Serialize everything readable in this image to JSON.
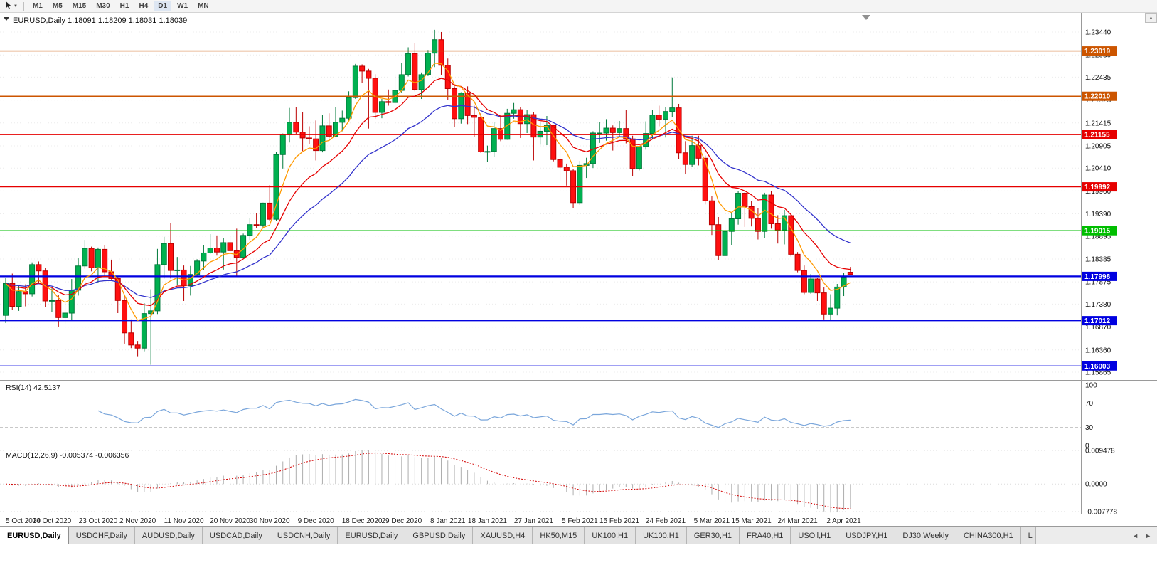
{
  "toolbar": {
    "timeframes": [
      "M1",
      "M5",
      "M15",
      "M30",
      "H1",
      "H4",
      "D1",
      "W1",
      "MN"
    ],
    "active_timeframe": "D1"
  },
  "chart": {
    "symbol": "EURUSD",
    "period": "Daily",
    "title_text": "EURUSD,Daily 1.18091 1.18209 1.18031 1.18039",
    "open": "1.18091",
    "high": "1.18209",
    "low": "1.18031",
    "close": "1.18039"
  },
  "misc": {
    "scroll_up_glyph": "▲",
    "dropdown_caret_glyph": "▼",
    "tab_scroll_left_glyph": "◄",
    "tab_scroll_right_glyph": "►"
  },
  "tabs": {
    "items": [
      "EURUSD,Daily",
      "USDCHF,Daily",
      "AUDUSD,Daily",
      "USDCAD,Daily",
      "USDCNH,Daily",
      "EURUSD,Daily",
      "GBPUSD,Daily",
      "XAUUSD,H4",
      "HK50,M15",
      "UK100,H1",
      "UK100,H1",
      "GER30,H1",
      "FRA40,H1",
      "USOil,H1",
      "USDJPY,H1",
      "DJ30,Weekly",
      "CHINA300,H1"
    ],
    "active_index": 0,
    "partial_label": "L"
  },
  "chart_data": {
    "type": "candlestick",
    "symbol": "EURUSD",
    "timeframe": "Daily",
    "colors": {
      "up": "#00b050",
      "up_border": "#00793a",
      "down": "#ff1010",
      "down_border": "#bb0000",
      "axis_text": "#111111",
      "separator": "#9a9a9a",
      "grid": "#ececec"
    },
    "y_axis_ticks": [
      "1.23440",
      "1.22930",
      "1.22435",
      "1.21925",
      "1.21415",
      "1.20905",
      "1.20410",
      "1.19900",
      "1.19390",
      "1.18895",
      "1.18385",
      "1.17875",
      "1.17380",
      "1.16870",
      "1.16360",
      "1.15865"
    ],
    "hlines": [
      {
        "price": 1.23019,
        "label": "1.23019",
        "color": "#cc5500",
        "width": 1.4
      },
      {
        "price": 1.2201,
        "label": "1.22010",
        "color": "#cc5500",
        "width": 1.4
      },
      {
        "price": 1.21155,
        "label": "1.21155",
        "color": "#e60000",
        "width": 1.4
      },
      {
        "price": 1.19992,
        "label": "1.19992",
        "color": "#e60000",
        "width": 1.4
      },
      {
        "price": 1.19015,
        "label": "1.19015",
        "color": "#00be00",
        "width": 1.4
      },
      {
        "price": 1.17998,
        "label": "1.17998",
        "color": "#0000e0",
        "width": 2.2
      },
      {
        "price": 1.17012,
        "label": "1.17012",
        "color": "#0000e0",
        "width": 1.4
      },
      {
        "price": 1.16003,
        "label": "1.16003",
        "color": "#0000e0",
        "width": 1.4
      }
    ],
    "moving_averages": [
      {
        "name": "slow",
        "type": "ema",
        "period": 25,
        "color": "#3333cc"
      },
      {
        "name": "medium",
        "type": "ema",
        "period": 13,
        "color": "#e60000"
      },
      {
        "name": "fast",
        "type": "ema",
        "period": 6,
        "color": "#ff9900"
      }
    ],
    "rsi": {
      "label": "RSI(14) 42.5137",
      "period": 14,
      "current_value": 42.5137,
      "levels": [
        100,
        70,
        30,
        0
      ],
      "dashed_levels": [
        70,
        30
      ],
      "color": "#7aa6db"
    },
    "macd": {
      "label": "MACD(12,26,9) -0.005374 -0.006356",
      "fast": 12,
      "slow": 26,
      "signal_period": 9,
      "macd_value": -0.005374,
      "signal_value": -0.006356,
      "scale_max": 0.009478,
      "scale_min": -0.007778,
      "levels": [
        "0.009478",
        "0.0000",
        "-0.007778"
      ],
      "histogram_color": "#adadad",
      "signal_color": "#d20000"
    },
    "x_labels": [
      {
        "label": "5 Oct 2020",
        "index": 0
      },
      {
        "label": "14 Oct 2020",
        "index": 7
      },
      {
        "label": "23 Oct 2020",
        "index": 14
      },
      {
        "label": "2 Nov 2020",
        "index": 20
      },
      {
        "label": "11 Nov 2020",
        "index": 27
      },
      {
        "label": "20 Nov 2020",
        "index": 34
      },
      {
        "label": "30 Nov 2020",
        "index": 40
      },
      {
        "label": "9 Dec 2020",
        "index": 47
      },
      {
        "label": "18 Dec 2020",
        "index": 54
      },
      {
        "label": "29 Dec 2020",
        "index": 60
      },
      {
        "label": "8 Jan 2021",
        "index": 67
      },
      {
        "label": "18 Jan 2021",
        "index": 73
      },
      {
        "label": "27 Jan 2021",
        "index": 80
      },
      {
        "label": "5 Feb 2021",
        "index": 87
      },
      {
        "label": "15 Feb 2021",
        "index": 93
      },
      {
        "label": "24 Feb 2021",
        "index": 100
      },
      {
        "label": "5 Mar 2021",
        "index": 107
      },
      {
        "label": "15 Mar 2021",
        "index": 113
      },
      {
        "label": "24 Mar 2021",
        "index": 120
      },
      {
        "label": "2 Apr 2021",
        "index": 127
      }
    ],
    "candles": [
      [
        1.1713,
        1.1797,
        1.1696,
        1.1784
      ],
      [
        1.1784,
        1.1806,
        1.1725,
        1.1733
      ],
      [
        1.1733,
        1.1781,
        1.1723,
        1.1766
      ],
      [
        1.1766,
        1.1782,
        1.1733,
        1.1761
      ],
      [
        1.1761,
        1.1831,
        1.1755,
        1.1826
      ],
      [
        1.1826,
        1.1833,
        1.1786,
        1.1812
      ],
      [
        1.1812,
        1.1818,
        1.1731,
        1.1745
      ],
      [
        1.1745,
        1.1773,
        1.1721,
        1.1746
      ],
      [
        1.1746,
        1.1758,
        1.1688,
        1.1708
      ],
      [
        1.1708,
        1.1747,
        1.1694,
        1.1718
      ],
      [
        1.1718,
        1.1794,
        1.1702,
        1.1769
      ],
      [
        1.1769,
        1.184,
        1.1757,
        1.1823
      ],
      [
        1.1823,
        1.1881,
        1.1817,
        1.1862
      ],
      [
        1.1862,
        1.1866,
        1.1811,
        1.1819
      ],
      [
        1.1819,
        1.1864,
        1.1786,
        1.186
      ],
      [
        1.186,
        1.187,
        1.18,
        1.181
      ],
      [
        1.181,
        1.1837,
        1.1793,
        1.1795
      ],
      [
        1.1795,
        1.18,
        1.1718,
        1.1746
      ],
      [
        1.1746,
        1.1759,
        1.165,
        1.1674
      ],
      [
        1.1674,
        1.1704,
        1.164,
        1.1647
      ],
      [
        1.1647,
        1.1656,
        1.1622,
        1.164
      ],
      [
        1.164,
        1.174,
        1.1633,
        1.1717
      ],
      [
        1.1717,
        1.1771,
        1.1603,
        1.1723
      ],
      [
        1.1723,
        1.1861,
        1.1716,
        1.1826
      ],
      [
        1.1826,
        1.1888,
        1.1795,
        1.1873
      ],
      [
        1.1873,
        1.1918,
        1.1795,
        1.1813
      ],
      [
        1.1813,
        1.1843,
        1.178,
        1.1814
      ],
      [
        1.1814,
        1.1824,
        1.1745,
        1.1779
      ],
      [
        1.1779,
        1.1823,
        1.1757,
        1.1804
      ],
      [
        1.1804,
        1.1838,
        1.1799,
        1.1834
      ],
      [
        1.1834,
        1.1869,
        1.1814,
        1.1852
      ],
      [
        1.1852,
        1.1894,
        1.185,
        1.1863
      ],
      [
        1.1863,
        1.1891,
        1.1846,
        1.1854
      ],
      [
        1.1854,
        1.1885,
        1.1815,
        1.1875
      ],
      [
        1.1875,
        1.1891,
        1.1849,
        1.1857
      ],
      [
        1.1857,
        1.1906,
        1.18,
        1.1842
      ],
      [
        1.1842,
        1.1895,
        1.184,
        1.1891
      ],
      [
        1.1891,
        1.1929,
        1.1881,
        1.1915
      ],
      [
        1.1915,
        1.1941,
        1.1907,
        1.1914
      ],
      [
        1.1914,
        1.1964,
        1.1908,
        1.1963
      ],
      [
        1.1963,
        1.2003,
        1.1923,
        1.1927
      ],
      [
        1.1927,
        1.2077,
        1.1923,
        1.2071
      ],
      [
        1.2071,
        1.2118,
        1.204,
        1.2115
      ],
      [
        1.2115,
        1.2175,
        1.2098,
        1.2143
      ],
      [
        1.2143,
        1.2177,
        1.2115,
        1.2121
      ],
      [
        1.2121,
        1.2166,
        1.2079,
        1.2108
      ],
      [
        1.2108,
        1.2134,
        1.2094,
        1.2106
      ],
      [
        1.2106,
        1.2147,
        1.2058,
        1.208
      ],
      [
        1.208,
        1.2159,
        1.2076,
        1.2135
      ],
      [
        1.2135,
        1.2163,
        1.2107,
        1.2112
      ],
      [
        1.2112,
        1.2177,
        1.211,
        1.2143
      ],
      [
        1.2143,
        1.2169,
        1.2123,
        1.2152
      ],
      [
        1.2152,
        1.2212,
        1.2145,
        1.2198
      ],
      [
        1.2198,
        1.2273,
        1.2195,
        1.2268
      ],
      [
        1.2268,
        1.2272,
        1.2231,
        1.2257
      ],
      [
        1.2257,
        1.2262,
        1.2129,
        1.2241
      ],
      [
        1.2241,
        1.225,
        1.2151,
        1.2165
      ],
      [
        1.2165,
        1.2195,
        1.2152,
        1.2189
      ],
      [
        1.2189,
        1.2216,
        1.218,
        1.2187
      ],
      [
        1.2187,
        1.225,
        1.2181,
        1.2214
      ],
      [
        1.2214,
        1.2275,
        1.2208,
        1.2249
      ],
      [
        1.2249,
        1.231,
        1.2245,
        1.2296
      ],
      [
        1.2296,
        1.232,
        1.2212,
        1.2216
      ],
      [
        1.2216,
        1.2254,
        1.2195,
        1.2249
      ],
      [
        1.2249,
        1.2304,
        1.2246,
        1.2297
      ],
      [
        1.2297,
        1.2349,
        1.2266,
        1.2327
      ],
      [
        1.2327,
        1.2344,
        1.2249,
        1.227
      ],
      [
        1.227,
        1.2285,
        1.2193,
        1.2218
      ],
      [
        1.2218,
        1.2223,
        1.2132,
        1.2151
      ],
      [
        1.2151,
        1.221,
        1.214,
        1.2208
      ],
      [
        1.2208,
        1.2223,
        1.2139,
        1.2158
      ],
      [
        1.2158,
        1.218,
        1.211,
        1.2154
      ],
      [
        1.2154,
        1.2163,
        1.2075,
        1.2077
      ],
      [
        1.2077,
        1.2091,
        1.2054,
        1.2078
      ],
      [
        1.2078,
        1.2144,
        1.2066,
        1.2129
      ],
      [
        1.2129,
        1.2158,
        1.2101,
        1.2105
      ],
      [
        1.2105,
        1.2173,
        1.2104,
        1.2163
      ],
      [
        1.2163,
        1.2186,
        1.2151,
        1.2171
      ],
      [
        1.2171,
        1.2176,
        1.2108,
        1.214
      ],
      [
        1.214,
        1.217,
        1.2119,
        1.216
      ],
      [
        1.216,
        1.2165,
        1.2058,
        1.211
      ],
      [
        1.211,
        1.2142,
        1.2093,
        1.2123
      ],
      [
        1.2123,
        1.2157,
        1.2092,
        1.2136
      ],
      [
        1.2136,
        1.2136,
        1.2056,
        1.206
      ],
      [
        1.206,
        1.2087,
        1.2011,
        1.2043
      ],
      [
        1.2043,
        1.2051,
        1.2002,
        1.2035
      ],
      [
        1.2035,
        1.2039,
        1.1952,
        1.1964
      ],
      [
        1.1964,
        1.2057,
        1.1959,
        1.2047
      ],
      [
        1.2047,
        1.2064,
        1.2019,
        1.2051
      ],
      [
        1.2051,
        1.2123,
        1.2041,
        1.2119
      ],
      [
        1.2119,
        1.2144,
        1.2097,
        1.2119
      ],
      [
        1.2119,
        1.215,
        1.2102,
        1.213
      ],
      [
        1.213,
        1.2136,
        1.208,
        1.212
      ],
      [
        1.212,
        1.2146,
        1.211,
        1.2129
      ],
      [
        1.2129,
        1.217,
        1.2096,
        1.2106
      ],
      [
        1.2106,
        1.2113,
        1.2023,
        1.204
      ],
      [
        1.204,
        1.209,
        1.2036,
        1.2089
      ],
      [
        1.2089,
        1.2145,
        1.2082,
        1.2118
      ],
      [
        1.2118,
        1.217,
        1.2106,
        1.2159
      ],
      [
        1.2159,
        1.218,
        1.2134,
        1.215
      ],
      [
        1.215,
        1.2176,
        1.2109,
        1.2167
      ],
      [
        1.2167,
        1.2243,
        1.2155,
        1.2175
      ],
      [
        1.2175,
        1.2184,
        1.2061,
        1.2075
      ],
      [
        1.2075,
        1.2101,
        1.2027,
        1.2049
      ],
      [
        1.2049,
        1.2113,
        1.2043,
        1.2091
      ],
      [
        1.2091,
        1.2113,
        1.2047,
        1.2063
      ],
      [
        1.2063,
        1.2069,
        1.196,
        1.1968
      ],
      [
        1.1968,
        1.1978,
        1.1892,
        1.1915
      ],
      [
        1.1915,
        1.1932,
        1.1836,
        1.1846
      ],
      [
        1.1846,
        1.1915,
        1.1846,
        1.19
      ],
      [
        1.19,
        1.1941,
        1.1869,
        1.1928
      ],
      [
        1.1928,
        1.199,
        1.1915,
        1.1985
      ],
      [
        1.1985,
        1.1988,
        1.191,
        1.1955
      ],
      [
        1.1955,
        1.1968,
        1.1911,
        1.1929
      ],
      [
        1.1929,
        1.1951,
        1.1882,
        1.19
      ],
      [
        1.19,
        1.1986,
        1.1886,
        1.1981
      ],
      [
        1.1981,
        1.1989,
        1.1906,
        1.1917
      ],
      [
        1.1917,
        1.1936,
        1.1873,
        1.1903
      ],
      [
        1.1903,
        1.1948,
        1.1871,
        1.1935
      ],
      [
        1.1935,
        1.194,
        1.1844,
        1.1849
      ],
      [
        1.1849,
        1.1854,
        1.1809,
        1.1813
      ],
      [
        1.1813,
        1.1824,
        1.176,
        1.1764
      ],
      [
        1.1764,
        1.1805,
        1.1761,
        1.1794
      ],
      [
        1.1794,
        1.1797,
        1.1745,
        1.1763
      ],
      [
        1.1763,
        1.1775,
        1.1704,
        1.1716
      ],
      [
        1.1716,
        1.176,
        1.1702,
        1.1729
      ],
      [
        1.1729,
        1.1783,
        1.1713,
        1.1776
      ],
      [
        1.1776,
        1.1808,
        1.1756,
        1.1798
      ],
      [
        1.18091,
        1.18209,
        1.18031,
        1.18039
      ]
    ]
  }
}
